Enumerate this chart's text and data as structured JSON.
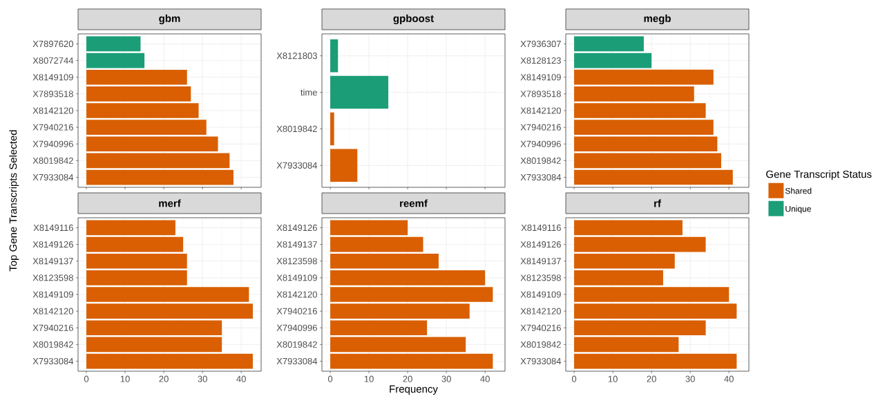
{
  "chart_data": [
    {
      "type": "bar",
      "orientation": "horizontal",
      "title": "gbm",
      "ylabel": "Top Gene Transcripts Selected",
      "categories": [
        "X7897620",
        "X8072744",
        "X8149109",
        "X7893518",
        "X8142120",
        "X7940216",
        "X7940996",
        "X8019842",
        "X7933084"
      ],
      "values": [
        14,
        15,
        26,
        27,
        29,
        31,
        34,
        37,
        38
      ],
      "colors": [
        "#1b9e77",
        "#1b9e77",
        "#d95f02",
        "#d95f02",
        "#d95f02",
        "#d95f02",
        "#d95f02",
        "#d95f02",
        "#d95f02"
      ],
      "xlim": [
        -2.15,
        45.15
      ],
      "xticks": [
        0,
        10,
        20,
        30,
        40
      ],
      "grid": true,
      "tick_labels": "y"
    },
    {
      "type": "bar",
      "orientation": "horizontal",
      "title": "gpboost",
      "categories": [
        "X8121803",
        "time",
        "X8019842",
        "X7933084"
      ],
      "values": [
        2,
        15,
        1,
        7
      ],
      "colors": [
        "#1b9e77",
        "#1b9e77",
        "#d95f02",
        "#d95f02"
      ],
      "xlim": [
        -2.15,
        45.15
      ],
      "xticks": [
        0,
        10,
        20,
        30,
        40
      ],
      "grid": true,
      "tick_labels": "y"
    },
    {
      "type": "bar",
      "orientation": "horizontal",
      "title": "megb",
      "legend_title": "Gene Transcript Status",
      "legend": "right",
      "categories": [
        "X7936307",
        "X8128123",
        "X8149109",
        "X7893518",
        "X8142120",
        "X7940216",
        "X7940996",
        "X8019842",
        "X7933084"
      ],
      "series": [
        {
          "name": "Shared",
          "color": "#d95f02",
          "values": [
            null,
            null,
            36,
            31,
            34,
            36,
            37,
            38,
            41
          ]
        },
        {
          "name": "Unique",
          "color": "#1b9e77",
          "values": [
            18,
            20,
            null,
            null,
            null,
            null,
            null,
            null,
            null
          ]
        }
      ],
      "xlim": [
        -2.15,
        45.15
      ],
      "xticks": [
        0,
        10,
        20,
        30,
        40
      ],
      "grid": true,
      "tick_labels": "y"
    },
    {
      "type": "bar",
      "orientation": "horizontal",
      "title": "merf",
      "categories": [
        "X8149116",
        "X8149126",
        "X8149137",
        "X8123598",
        "X8149109",
        "X8142120",
        "X7940216",
        "X8019842",
        "X7933084"
      ],
      "values": [
        23,
        25,
        26,
        26,
        42,
        43,
        35,
        35,
        43
      ],
      "colors": [
        "#d95f02",
        "#d95f02",
        "#d95f02",
        "#d95f02",
        "#d95f02",
        "#d95f02",
        "#d95f02",
        "#d95f02",
        "#d95f02"
      ],
      "xlim": [
        -2.15,
        45.15
      ],
      "xticks": [
        0,
        10,
        20,
        30,
        40
      ],
      "grid": true
    },
    {
      "type": "bar",
      "orientation": "horizontal",
      "title": "reemf",
      "xlabel": "Frequency",
      "categories": [
        "X8149126",
        "X8149137",
        "X8123598",
        "X8149109",
        "X8142120",
        "X7940216",
        "X7940996",
        "X8019842",
        "X7933084"
      ],
      "values": [
        20,
        24,
        28,
        40,
        42,
        36,
        25,
        35,
        42
      ],
      "colors": [
        "#d95f02",
        "#d95f02",
        "#d95f02",
        "#d95f02",
        "#d95f02",
        "#d95f02",
        "#d95f02",
        "#d95f02",
        "#d95f02"
      ],
      "xlim": [
        -2.15,
        45.15
      ],
      "xticks": [
        0,
        10,
        20,
        30,
        40
      ],
      "grid": true
    },
    {
      "type": "bar",
      "orientation": "horizontal",
      "title": "rf",
      "categories": [
        "X8149116",
        "X8149126",
        "X8149137",
        "X8123598",
        "X8149109",
        "X8142120",
        "X7940216",
        "X8019842",
        "X7933084"
      ],
      "values": [
        28,
        34,
        26,
        23,
        40,
        42,
        34,
        27,
        42
      ],
      "colors": [
        "#d95f02",
        "#d95f02",
        "#d95f02",
        "#d95f02",
        "#d95f02",
        "#d95f02",
        "#d95f02",
        "#d95f02",
        "#d95f02"
      ],
      "xlim": [
        -2.15,
        45.15
      ],
      "xticks": [
        0,
        10,
        20,
        30,
        40
      ],
      "grid": true
    }
  ]
}
